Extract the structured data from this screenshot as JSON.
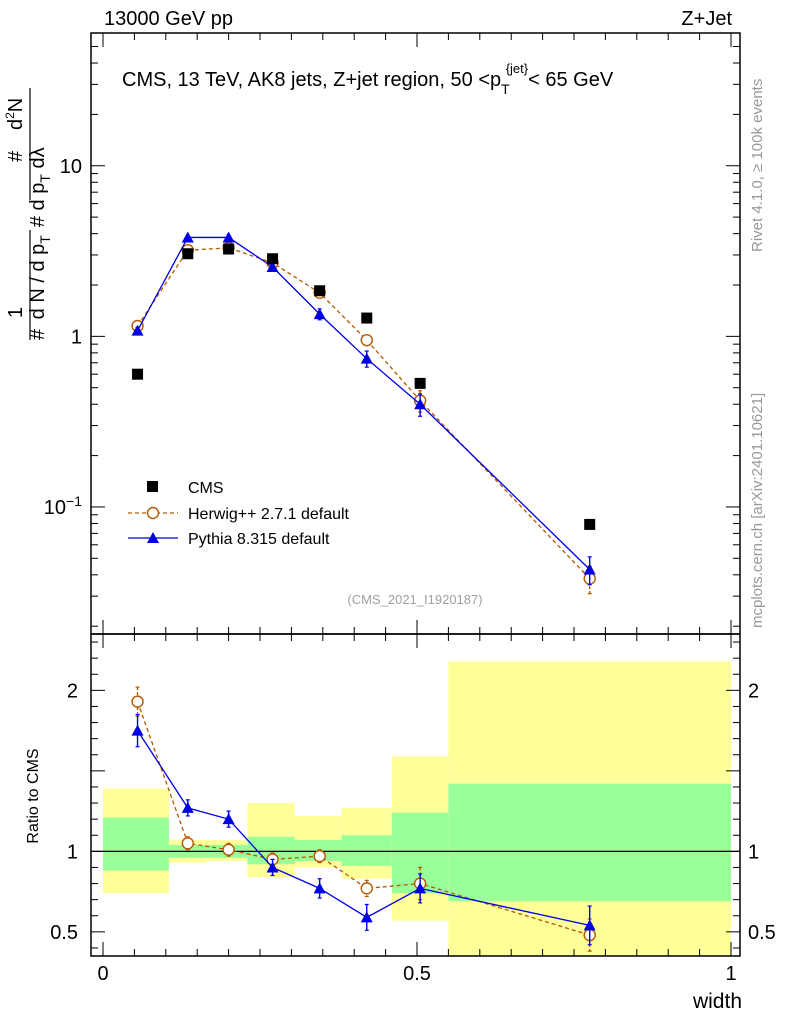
{
  "header": {
    "left": "13000 GeV pp",
    "right": "Z+Jet"
  },
  "side_labels": {
    "rivet": "Rivet 4.1.0, ≥ 100k events",
    "mcplots": "mcplots.cern.ch [arXiv:2401.10621]"
  },
  "colors": {
    "cms": "#000000",
    "herwig": "#b35900",
    "pythia": "#0000e6",
    "band_outer": "#ffff99",
    "band_inner": "#99ff99"
  },
  "chart_data": [
    {
      "type": "scatter",
      "panel": "main",
      "title": "CMS, 13 TeV, AK8 jets, Z+jet region, 50 <p_T^{jet}< 65 GeV",
      "ylabel": "1/(dN/dp_T) dN/(dp_T dλ)",
      "yscale": "log",
      "ylim": [
        0.018,
        60
      ],
      "xlim": [
        -0.02,
        1.0
      ],
      "ytick_labels": [
        "10^-1",
        "1",
        "10"
      ],
      "watermark": "(CMS_2021_I1920187)",
      "legend": [
        "CMS",
        "Herwig++ 2.7.1 default",
        "Pythia 8.315 default"
      ],
      "legend_position": "bottom-left",
      "series": [
        {
          "name": "CMS",
          "style": "marker-square",
          "x": [
            0.055,
            0.135,
            0.2,
            0.27,
            0.345,
            0.42,
            0.505,
            0.775
          ],
          "y": [
            0.6,
            3.05,
            3.25,
            2.85,
            1.85,
            1.28,
            0.53,
            0.079
          ]
        },
        {
          "name": "Herwig++ 2.7.1 default",
          "style": "open-circle-dashed",
          "x": [
            0.055,
            0.135,
            0.2,
            0.27,
            0.345,
            0.42,
            0.505,
            0.775
          ],
          "y": [
            1.15,
            3.2,
            3.3,
            2.7,
            1.8,
            0.95,
            0.42,
            0.038
          ],
          "yerr": [
            0.05,
            0.1,
            0.1,
            0.1,
            0.08,
            0.06,
            0.06,
            0.007
          ]
        },
        {
          "name": "Pythia 8.315 default",
          "style": "filled-triangle-solid",
          "x": [
            0.055,
            0.135,
            0.2,
            0.27,
            0.345,
            0.42,
            0.505,
            0.775
          ],
          "y": [
            1.08,
            3.8,
            3.8,
            2.55,
            1.35,
            0.74,
            0.4,
            0.043
          ],
          "yerr": [
            0.05,
            0.12,
            0.12,
            0.1,
            0.1,
            0.08,
            0.06,
            0.008
          ]
        }
      ]
    },
    {
      "type": "scatter",
      "panel": "ratio",
      "ylabel": "Ratio to CMS",
      "xlabel": "width",
      "ylim": [
        0.35,
        2.35
      ],
      "xlim": [
        -0.02,
        1.0
      ],
      "xtick_labels": [
        "0",
        "0.5",
        "1"
      ],
      "ytick_labels": [
        "0.5",
        "1",
        "2"
      ],
      "bands": [
        {
          "x0": 0.0,
          "x1": 0.105,
          "outer": [
            0.74,
            1.39
          ],
          "inner": [
            0.88,
            1.21
          ]
        },
        {
          "x0": 0.105,
          "x1": 0.165,
          "outer": [
            0.93,
            1.07
          ],
          "inner": [
            0.96,
            1.04
          ]
        },
        {
          "x0": 0.165,
          "x1": 0.23,
          "outer": [
            0.94,
            1.07
          ],
          "inner": [
            0.96,
            1.04
          ]
        },
        {
          "x0": 0.23,
          "x1": 0.305,
          "outer": [
            0.84,
            1.3
          ],
          "inner": [
            0.92,
            1.09
          ]
        },
        {
          "x0": 0.305,
          "x1": 0.38,
          "outer": [
            0.9,
            1.22
          ],
          "inner": [
            0.94,
            1.07
          ]
        },
        {
          "x0": 0.38,
          "x1": 0.46,
          "outer": [
            0.83,
            1.27
          ],
          "inner": [
            0.91,
            1.1
          ]
        },
        {
          "x0": 0.46,
          "x1": 0.55,
          "outer": [
            0.57,
            1.59
          ],
          "inner": [
            0.74,
            1.24
          ]
        },
        {
          "x0": 0.55,
          "x1": 1.0,
          "outer": [
            0.3,
            2.18
          ],
          "inner": [
            0.69,
            1.42
          ]
        }
      ],
      "series": [
        {
          "name": "Herwig++ 2.7.1 default",
          "x": [
            0.055,
            0.135,
            0.2,
            0.27,
            0.345,
            0.42,
            0.505,
            0.775
          ],
          "y": [
            1.93,
            1.05,
            1.01,
            0.95,
            0.97,
            0.77,
            0.8,
            0.48
          ],
          "yerr": [
            0.09,
            0.04,
            0.04,
            0.04,
            0.04,
            0.05,
            0.1,
            0.1
          ]
        },
        {
          "name": "Pythia 8.315 default",
          "x": [
            0.055,
            0.135,
            0.2,
            0.27,
            0.345,
            0.42,
            0.505,
            0.775
          ],
          "y": [
            1.75,
            1.27,
            1.2,
            0.9,
            0.77,
            0.59,
            0.77,
            0.54
          ],
          "yerr": [
            0.1,
            0.05,
            0.05,
            0.05,
            0.06,
            0.08,
            0.09,
            0.12
          ]
        }
      ]
    }
  ]
}
